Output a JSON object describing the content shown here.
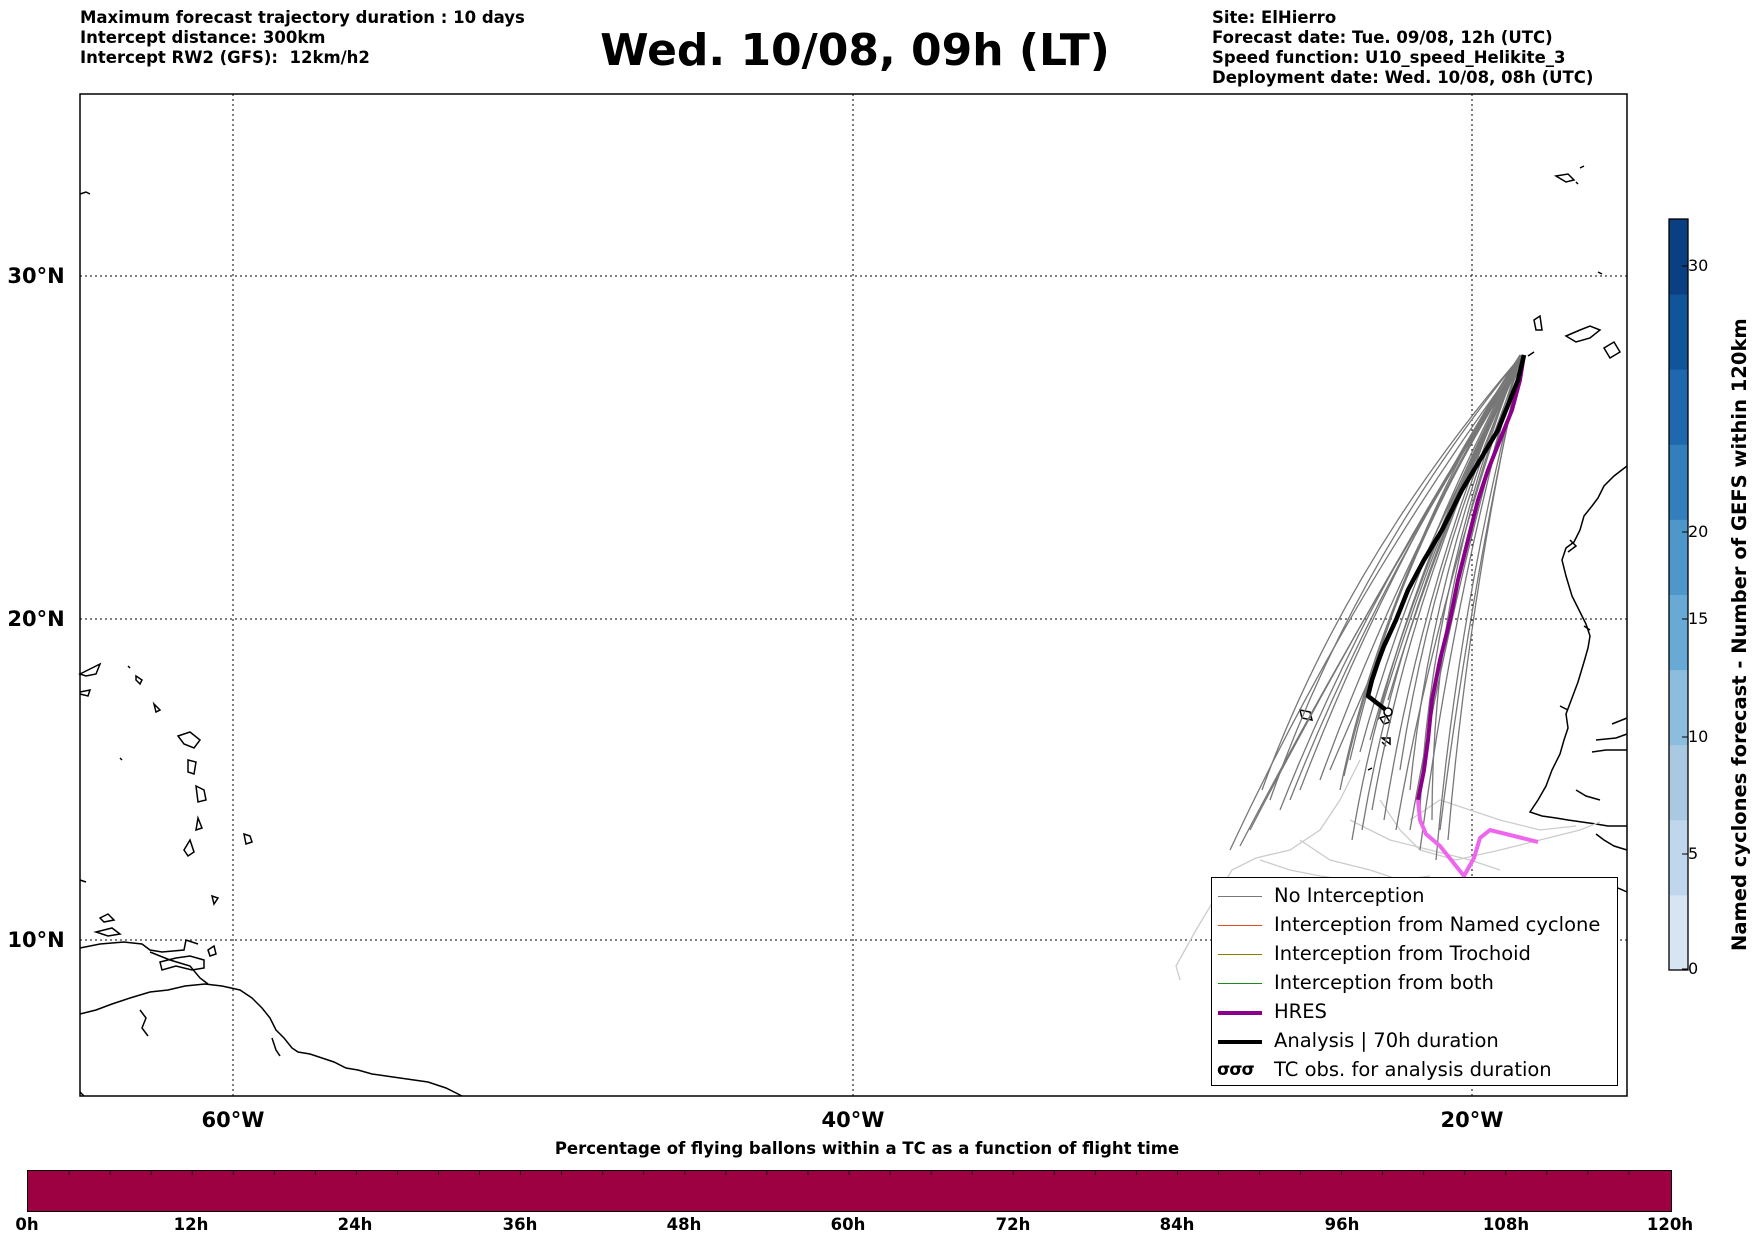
{
  "header": {
    "left_lines": [
      "Maximum forecast trajectory duration : 10 days",
      "Intercept distance: 300km",
      "Intercept RW2 (GFS):  12km/h2"
    ],
    "title": "Wed. 10/08, 09h (LT)",
    "right_lines": [
      "Site: ElHierro",
      "Forecast date: Tue. 09/08, 12h (UTC)",
      "Speed function: U10_speed_Helikite_3",
      "Deployment date: Wed. 10/08, 08h (UTC)"
    ]
  },
  "map": {
    "lat_labels": [
      "30°N",
      "20°N",
      "10°N"
    ],
    "lon_labels": [
      "60°W",
      "40°W",
      "20°W"
    ],
    "colors": {
      "no_interception": "#777777",
      "faint_tracks": "#cccccc",
      "hres": "#8b008b",
      "hres_forecast": "#ee66ee",
      "analysis": "#000000",
      "coast": "#000000"
    }
  },
  "legend": {
    "items": [
      {
        "label": "No Interception",
        "color": "#777777",
        "width": 1.5
      },
      {
        "label": "Interception from Named cyclone",
        "color": "#e34a1f",
        "width": 1.5
      },
      {
        "label": "Interception from Trochoid",
        "color": "#808000",
        "width": 1.5
      },
      {
        "label": "Interception from both",
        "color": "#1a8a1a",
        "width": 1.5
      },
      {
        "label": "HRES",
        "color": "#8b008b",
        "width": 4
      },
      {
        "label": "Analysis | 70h duration",
        "color": "#000000",
        "width": 4
      }
    ],
    "tc_obs_label": "TC obs. for analysis duration",
    "tc_obs_icon": "σσσ"
  },
  "colorbar_vertical": {
    "label": "Named cyclones forecast - Number of GEFS within 120km",
    "ticks": [
      "0",
      "5",
      "10",
      "15",
      "20",
      "30"
    ],
    "colors": [
      "#d6e4f4",
      "#c0d6ec",
      "#a9c9e3",
      "#8cbcde",
      "#69a9d6",
      "#4d97cb",
      "#337fbc",
      "#1f68ad",
      "#105499",
      "#0a4082"
    ]
  },
  "colorbar_horizontal": {
    "title": "Percentage of flying ballons within a TC as a function of flight time",
    "ticks": [
      "0h",
      "12h",
      "24h",
      "36h",
      "48h",
      "60h",
      "72h",
      "84h",
      "96h",
      "108h",
      "120h"
    ],
    "fill_color": "#9e0142"
  }
}
